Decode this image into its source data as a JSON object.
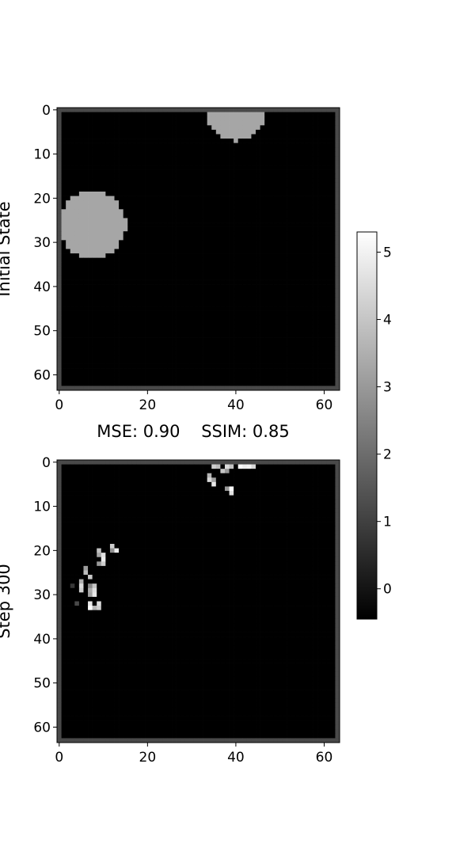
{
  "panels": [
    {
      "ylabel": "Initial State"
    },
    {
      "ylabel": "Step 300"
    }
  ],
  "metrics": {
    "text": "MSE: 0.90    SSIM: 0.85"
  },
  "chart_data": [
    {
      "type": "heatmap",
      "title": "",
      "ylabel": "Initial State",
      "xlabel": "",
      "grid_size": [
        64,
        64
      ],
      "xlim": [
        -0.5,
        63.5
      ],
      "ylim": [
        63.5,
        -0.5
      ],
      "x_ticks": [
        "0",
        "20",
        "40",
        "60"
      ],
      "y_ticks": [
        "0",
        "10",
        "20",
        "30",
        "40",
        "50",
        "60"
      ],
      "colormap": "gray",
      "border_value": 1.2,
      "background_value": -0.45,
      "disks": [
        {
          "cx": 40,
          "cy": 0.5,
          "r": 6.5,
          "value": 3.3
        },
        {
          "cx": 7.5,
          "cy": 26,
          "r": 7.6,
          "value": 3.3
        }
      ]
    },
    {
      "type": "heatmap",
      "title": "",
      "ylabel": "Step 300",
      "xlabel": "",
      "grid_size": [
        64,
        64
      ],
      "xlim": [
        -0.5,
        63.5
      ],
      "ylim": [
        63.5,
        -0.5
      ],
      "x_ticks": [
        "0",
        "20",
        "40",
        "60"
      ],
      "y_ticks": [
        "0",
        "10",
        "20",
        "30",
        "40",
        "50",
        "60"
      ],
      "colormap": "gray",
      "border_value": 1.2,
      "background_value": -0.45,
      "cells": [
        {
          "x": 35,
          "y": 0,
          "v": 4.6
        },
        {
          "x": 36,
          "y": 0,
          "v": 5.0
        },
        {
          "x": 38,
          "y": 0,
          "v": 5.1
        },
        {
          "x": 39,
          "y": 0,
          "v": 4.8
        },
        {
          "x": 41,
          "y": 0,
          "v": 5.2
        },
        {
          "x": 42,
          "y": 0,
          "v": 4.9
        },
        {
          "x": 43,
          "y": 0,
          "v": 5.0
        },
        {
          "x": 44,
          "y": 0,
          "v": 4.4
        },
        {
          "x": 35,
          "y": 1,
          "v": 4.2
        },
        {
          "x": 36,
          "y": 1,
          "v": 3.8
        },
        {
          "x": 38,
          "y": 1,
          "v": 4.5
        },
        {
          "x": 39,
          "y": 1,
          "v": 3.9
        },
        {
          "x": 37,
          "y": 2,
          "v": 4.0
        },
        {
          "x": 38,
          "y": 2,
          "v": 3.0
        },
        {
          "x": 34,
          "y": 3,
          "v": 3.6
        },
        {
          "x": 34,
          "y": 4,
          "v": 4.4
        },
        {
          "x": 35,
          "y": 4,
          "v": 3.2
        },
        {
          "x": 35,
          "y": 5,
          "v": 4.8
        },
        {
          "x": 38,
          "y": 6,
          "v": 3.0
        },
        {
          "x": 39,
          "y": 6,
          "v": 5.2
        },
        {
          "x": 39,
          "y": 7,
          "v": 4.6
        },
        {
          "x": 12,
          "y": 19,
          "v": 4.2
        },
        {
          "x": 9,
          "y": 20,
          "v": 3.9
        },
        {
          "x": 12,
          "y": 20,
          "v": 2.8
        },
        {
          "x": 13,
          "y": 20,
          "v": 4.9
        },
        {
          "x": 9,
          "y": 21,
          "v": 3.3
        },
        {
          "x": 10,
          "y": 21,
          "v": 4.6
        },
        {
          "x": 10,
          "y": 22,
          "v": 4.9
        },
        {
          "x": 9,
          "y": 23,
          "v": 3.0
        },
        {
          "x": 10,
          "y": 23,
          "v": 4.2
        },
        {
          "x": 6,
          "y": 24,
          "v": 3.1
        },
        {
          "x": 6,
          "y": 25,
          "v": 3.8
        },
        {
          "x": 7,
          "y": 26,
          "v": 4.1
        },
        {
          "x": 5,
          "y": 27,
          "v": 3.5
        },
        {
          "x": 3,
          "y": 28,
          "v": 0.8
        },
        {
          "x": 5,
          "y": 28,
          "v": 4.5
        },
        {
          "x": 7,
          "y": 28,
          "v": 2.6
        },
        {
          "x": 8,
          "y": 28,
          "v": 4.0
        },
        {
          "x": 5,
          "y": 29,
          "v": 4.2
        },
        {
          "x": 7,
          "y": 29,
          "v": 3.4
        },
        {
          "x": 8,
          "y": 29,
          "v": 4.6
        },
        {
          "x": 7,
          "y": 30,
          "v": 3.2
        },
        {
          "x": 8,
          "y": 30,
          "v": 4.8
        },
        {
          "x": 4,
          "y": 32,
          "v": 1.2
        },
        {
          "x": 7,
          "y": 32,
          "v": 4.8
        },
        {
          "x": 9,
          "y": 32,
          "v": 4.5
        },
        {
          "x": 7,
          "y": 33,
          "v": 5.2
        },
        {
          "x": 8,
          "y": 33,
          "v": 3.6
        },
        {
          "x": 9,
          "y": 33,
          "v": 4.2
        }
      ]
    },
    {
      "type": "colorbar",
      "vmin": -0.45,
      "vmax": 5.3,
      "ticks": [
        0,
        1,
        2,
        3,
        4,
        5
      ]
    }
  ]
}
